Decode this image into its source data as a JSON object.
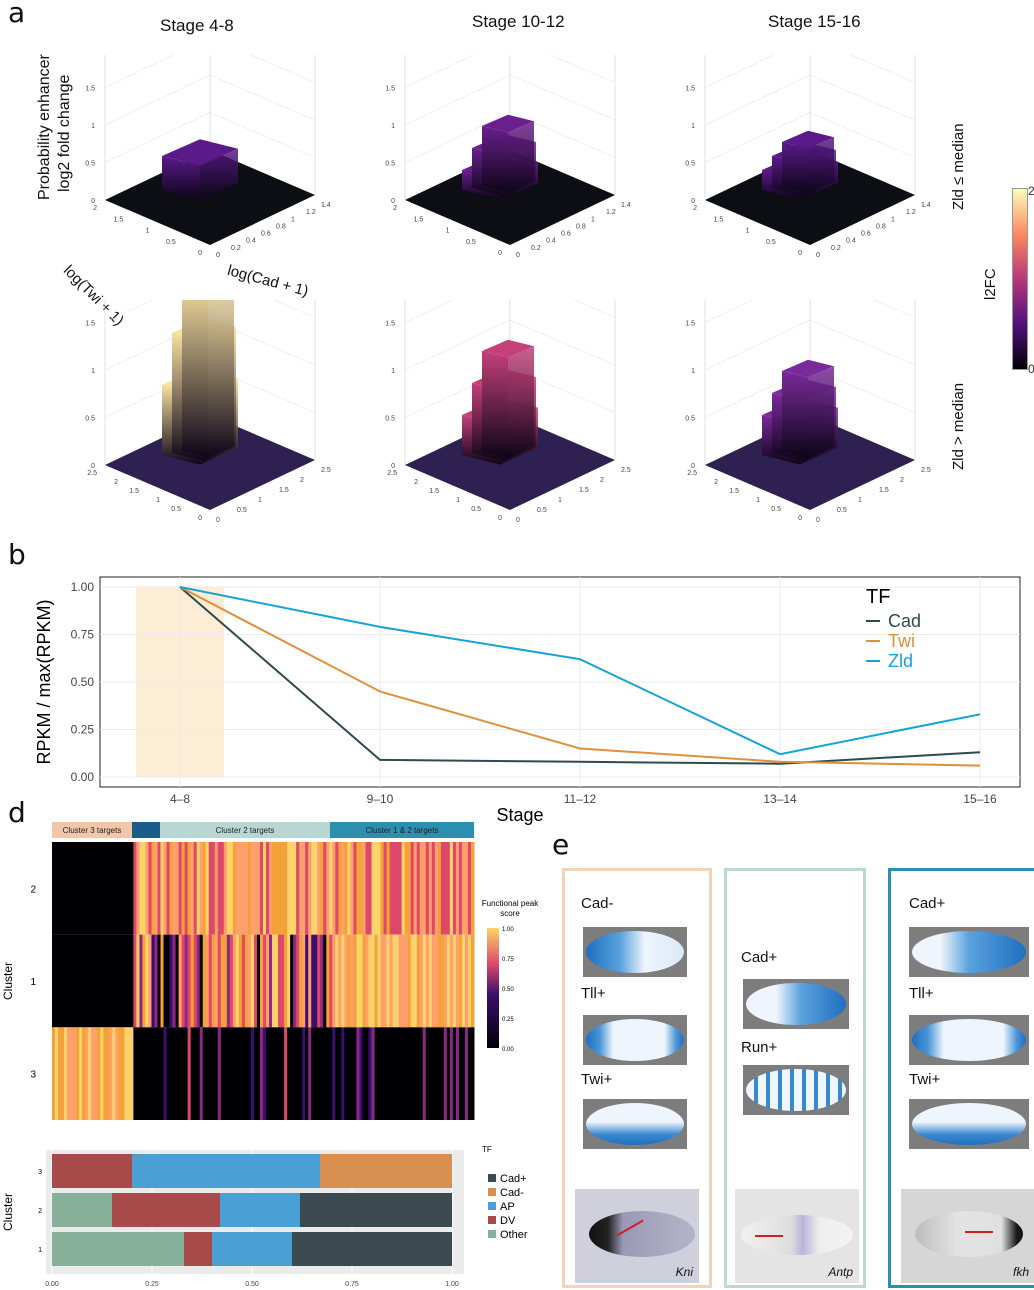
{
  "panel_a": {
    "letter": "a",
    "stage_titles": [
      "Stage 4-8",
      "Stage 10-12",
      "Stage 15-16"
    ],
    "z_label_line1": "Probability enhancer",
    "z_label_line2": "log2 fold change",
    "x_axis_label": "log(Cad + 1)",
    "y_axis_label": "log(Twi + 1)",
    "row_labels": [
      "Zld ≤ median",
      "Zld > median"
    ],
    "colorbar_title": "l2FC",
    "colorbar_max": "2",
    "colorbar_min": "0",
    "z_ticks": [
      "2",
      "1.5",
      "1",
      "0.5",
      "0"
    ],
    "top_x_ticks": [
      "0",
      "0.2",
      "0.4",
      "0.6",
      "0.8",
      "1",
      "1.2",
      "1.4"
    ],
    "top_y_ticks": [
      "0",
      "0.5",
      "1",
      "1.5",
      "2"
    ],
    "bottom_x_ticks": [
      "0",
      "0.5",
      "1",
      "1.5",
      "2",
      "2.5"
    ],
    "bottom_y_ticks": [
      "0",
      "0.5",
      "1",
      "1.5",
      "2",
      "2.5"
    ],
    "colors": {
      "low": "#000004",
      "mid": "#51127c",
      "high": "#fcfdbf"
    }
  },
  "panel_b": {
    "letter": "b",
    "chart_data": {
      "type": "line",
      "x_categories": [
        "4–8",
        "9–10",
        "11–12",
        "13–14",
        "15–16"
      ],
      "xlabel": "Stage",
      "ylabel": "RPKM / max(RPKM)",
      "ylim": [
        0,
        1
      ],
      "y_ticks": [
        "0.00",
        "0.25",
        "0.50",
        "0.75",
        "1.00"
      ],
      "legend_title": "TF",
      "legend_position": "top-right",
      "highlight_category": "4–8",
      "series": [
        {
          "name": "Cad",
          "color": "#2f4a4f",
          "values": [
            1.0,
            0.09,
            0.08,
            0.07,
            0.13
          ]
        },
        {
          "name": "Twi",
          "color": "#e08f3a",
          "values": [
            1.0,
            0.45,
            0.15,
            0.08,
            0.06
          ]
        },
        {
          "name": "Zld",
          "color": "#14a3d8",
          "values": [
            1.0,
            0.79,
            0.62,
            0.12,
            0.33
          ]
        }
      ]
    }
  },
  "panel_d": {
    "letter": "d",
    "top_bar_labels": [
      "Cluster 3 targets",
      "Cluster 2 targets",
      "Cluster 1 & 2 targets"
    ],
    "heatmap_row_labels": [
      "2",
      "1",
      "3"
    ],
    "y_axis_label": "Cluster",
    "colorbar_title_line1": "Functional peak",
    "colorbar_title_line2": "score",
    "colorbar_ticks": [
      "1.00",
      "0.75",
      "0.50",
      "0.25",
      "0.00"
    ],
    "chart_data": {
      "type": "bar",
      "orientation": "horizontal-stacked",
      "categories": [
        "3",
        "2",
        "1"
      ],
      "xlabel": "",
      "ylabel": "Cluster",
      "x_ticks": [
        "0.00",
        "0.25",
        "0.50",
        "0.75",
        "1.00"
      ],
      "legend_title": "TF",
      "series": [
        {
          "name": "Other",
          "color": "#87b09a",
          "values": [
            0.0,
            0.15,
            0.33
          ]
        },
        {
          "name": "DV",
          "color": "#a84a4a",
          "values": [
            0.2,
            0.27,
            0.07
          ]
        },
        {
          "name": "AP",
          "color": "#4a9fd4",
          "values": [
            0.47,
            0.2,
            0.2
          ]
        },
        {
          "name": "Cad-",
          "color": "#d88f4f",
          "values": [
            0.33,
            0.0,
            0.0
          ]
        },
        {
          "name": "Cad+",
          "color": "#3b4a4f",
          "values": [
            0.0,
            0.38,
            0.4
          ]
        }
      ],
      "legend_order": [
        "Cad+",
        "Cad-",
        "AP",
        "DV",
        "Other"
      ]
    }
  },
  "panel_e": {
    "letter": "e",
    "columns": [
      {
        "border_color": "#f3d3b8",
        "labels": [
          "Cad-",
          "Tll+",
          "Twi+"
        ],
        "gene": "Kni"
      },
      {
        "border_color": "#bcd8d4",
        "labels": [
          "Cad+",
          "Run+"
        ],
        "gene": "Antp"
      },
      {
        "border_color": "#2b8fb3",
        "labels": [
          "Cad+",
          "Tll+",
          "Twi+"
        ],
        "gene": "fkh"
      }
    ]
  }
}
